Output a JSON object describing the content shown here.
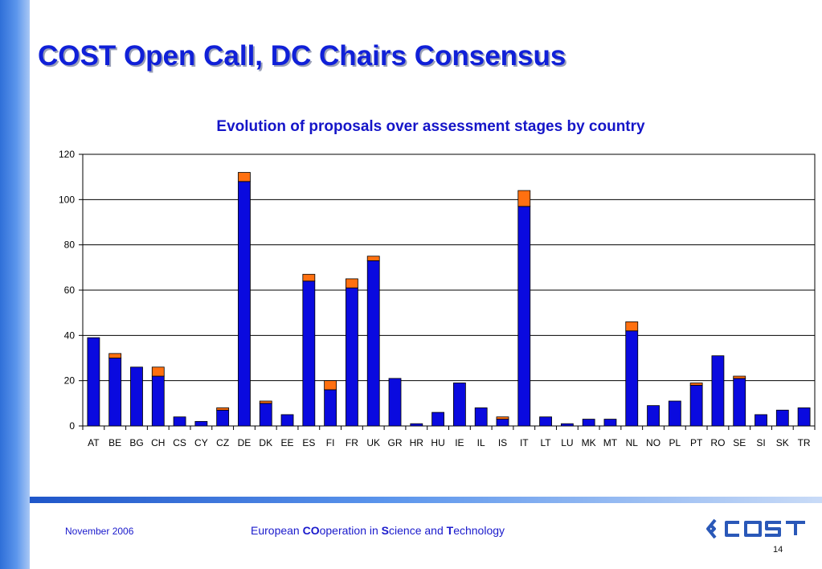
{
  "slide": {
    "title": "COST Open Call, DC Chairs Consensus",
    "footer_date": "November 2006",
    "tagline_parts": [
      "European ",
      "CO",
      "operation in ",
      "S",
      "cience and ",
      "T",
      "echnology"
    ],
    "logo_text": "cost",
    "page_number": "14"
  },
  "colors": {
    "bar_primary": "#0a0adf",
    "bar_secondary": "#ff7010",
    "title": "#1020d8",
    "accent": "#2f6fd8"
  },
  "chart_data": {
    "type": "bar",
    "stacked": true,
    "title": "Evolution of proposals over assessment stages by country",
    "xlabel": "",
    "ylabel": "",
    "ylim": [
      0,
      120
    ],
    "yticks": [
      0,
      20,
      40,
      60,
      80,
      100,
      120
    ],
    "grid": true,
    "legend": "none",
    "categories": [
      "AT",
      "BE",
      "BG",
      "CH",
      "CS",
      "CY",
      "CZ",
      "DE",
      "DK",
      "EE",
      "ES",
      "FI",
      "FR",
      "UK",
      "GR",
      "HR",
      "HU",
      "IE",
      "IL",
      "IS",
      "IT",
      "LT",
      "LU",
      "MK",
      "MT",
      "NL",
      "NO",
      "PL",
      "PT",
      "RO",
      "SE",
      "SI",
      "SK",
      "TR"
    ],
    "series": [
      {
        "color": "#0a0adf",
        "values": [
          39,
          30,
          26,
          22,
          4,
          2,
          7,
          108,
          10,
          5,
          64,
          16,
          61,
          73,
          21,
          1,
          6,
          19,
          8,
          3,
          97,
          4,
          1,
          3,
          3,
          42,
          9,
          11,
          18,
          31,
          21,
          5,
          7,
          8
        ]
      },
      {
        "color": "#ff7010",
        "values": [
          0,
          2,
          0,
          4,
          0,
          0,
          1,
          4,
          1,
          0,
          3,
          4,
          4,
          2,
          0,
          0,
          0,
          0,
          0,
          1,
          7,
          0,
          0,
          0,
          0,
          4,
          0,
          0,
          1,
          0,
          1,
          0,
          0,
          0
        ]
      }
    ]
  }
}
